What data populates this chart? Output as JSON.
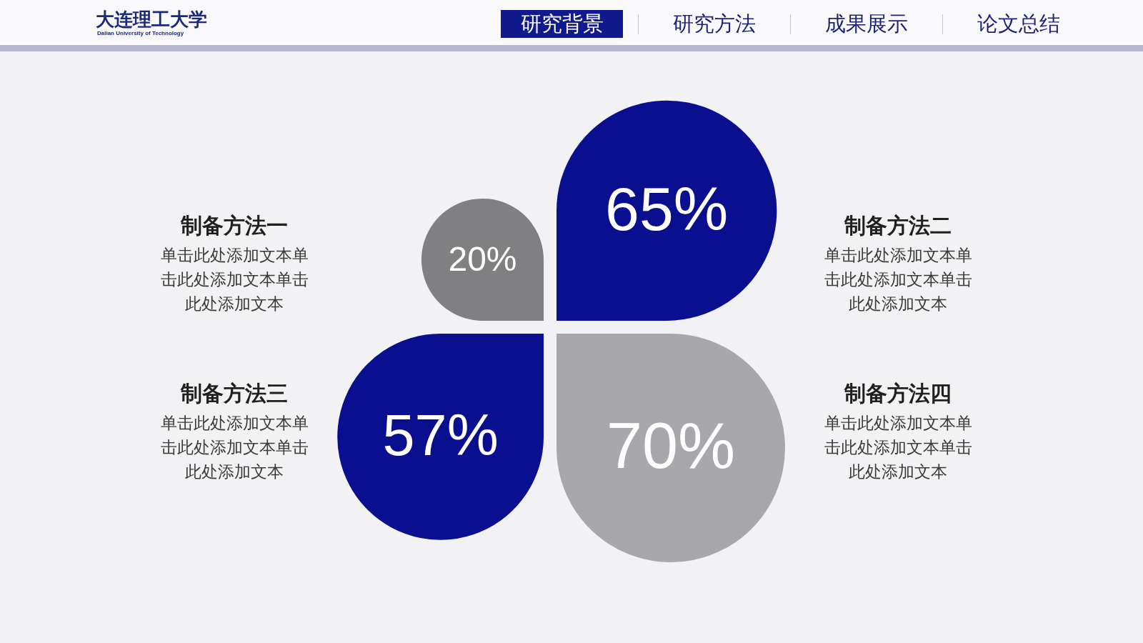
{
  "chart_data": {
    "type": "other",
    "categories": [
      "制备方法一",
      "制备方法二",
      "制备方法三",
      "制备方法四"
    ],
    "values": [
      20,
      65,
      57,
      70
    ],
    "value_labels": [
      "20%",
      "65%",
      "57%",
      "70%"
    ],
    "colors": [
      "#808083",
      "#0a0f8f",
      "#0a0f8f",
      "#a8a7ab"
    ],
    "annotations": [
      "大连理工大学",
      "Dalian University of Technology",
      "研究背景",
      "研究方法",
      "成果展示",
      "论文总结",
      "单击此处添加文本单击此处添加文本单击此处添加文本",
      "单击此处添加文本单击此处添加文本单击此处添加文本",
      "单击此处添加文本单击此处添加文本单击此处添加文本",
      "单击此处添加文本单击此处添加文本单击此处添加文本"
    ]
  }
}
